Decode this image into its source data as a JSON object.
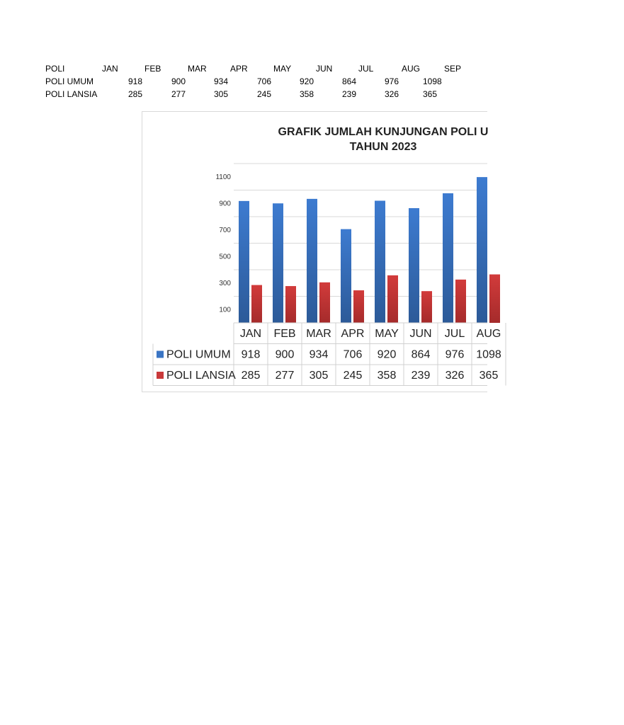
{
  "sheet": {
    "header": [
      "POLI",
      "JAN",
      "FEB",
      "MAR",
      "APR",
      "MAY",
      "JUN",
      "JUL",
      "AUG",
      "SEP"
    ],
    "rows": [
      {
        "label": "POLI UMUM",
        "values": [
          "918",
          "900",
          "934",
          "706",
          "920",
          "864",
          "976",
          "1098"
        ]
      },
      {
        "label": "POLI LANSIA",
        "values": [
          "285",
          "277",
          "305",
          "245",
          "358",
          "239",
          "326",
          "365"
        ]
      }
    ]
  },
  "chart_data": {
    "type": "bar",
    "title": "GRAFIK JUMLAH KUNJUNGAN POLI U",
    "subtitle": "TAHUN 2023",
    "categories": [
      "JAN",
      "FEB",
      "MAR",
      "APR",
      "MAY",
      "JUN",
      "JUL",
      "AUG"
    ],
    "series": [
      {
        "name": "POLI UMUM",
        "color": "#3a75c4",
        "values": [
          918,
          900,
          934,
          706,
          920,
          864,
          976,
          1098
        ]
      },
      {
        "name": "POLI LANSIA",
        "color": "#c9393a",
        "values": [
          285,
          277,
          305,
          245,
          358,
          239,
          326,
          365
        ]
      }
    ],
    "yticks": [
      100,
      300,
      500,
      700,
      900,
      1100
    ],
    "ylim": [
      0,
      1200
    ],
    "grid": true,
    "legend": "data-table"
  }
}
